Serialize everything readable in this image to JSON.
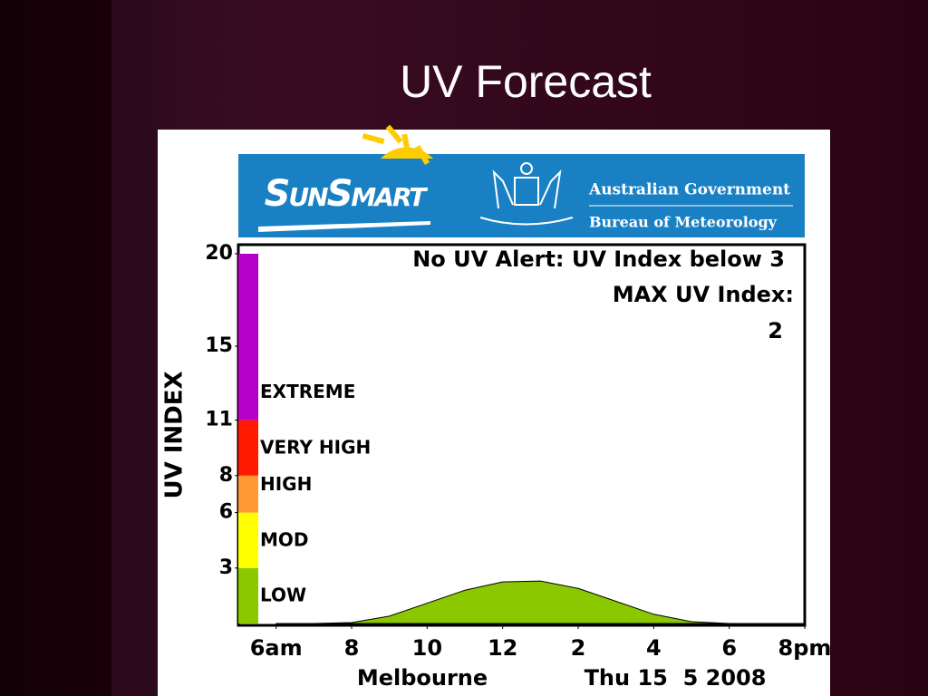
{
  "slide": {
    "title": "UV Forecast"
  },
  "header": {
    "brand": "SunSmart",
    "government": "Australian Government",
    "agency": "Bureau of Meteorology"
  },
  "chart_data": {
    "type": "area",
    "ylabel": "UV INDEX",
    "annotations": [
      "No UV Alert: UV Index below 3",
      "MAX UV Index:",
      "2"
    ],
    "location": "Melbourne",
    "date": "Thu 15  5 2008",
    "x": [
      6,
      7,
      8,
      9,
      10,
      11,
      12,
      13,
      14,
      15,
      16,
      17,
      18,
      19,
      20
    ],
    "values": [
      0,
      0,
      0.05,
      0.4,
      1.1,
      1.8,
      2.25,
      2.3,
      1.9,
      1.2,
      0.5,
      0.1,
      0,
      0,
      0
    ],
    "color": "#8cc800",
    "xlim": [
      5,
      20
    ],
    "xticks": [
      {
        "value": 6,
        "label": "6am"
      },
      8,
      10,
      12,
      {
        "value": 14,
        "label": "2"
      },
      {
        "value": 16,
        "label": "4"
      },
      {
        "value": 18,
        "label": "6"
      },
      {
        "value": 20,
        "label": "8pm"
      }
    ],
    "ylim": [
      0,
      20
    ],
    "yticks": [
      3,
      6,
      8,
      11,
      15,
      20
    ],
    "bands": [
      {
        "label": "LOW",
        "from": 0,
        "to": 3,
        "color": "#8cc800"
      },
      {
        "label": "MOD",
        "from": 3,
        "to": 6,
        "color": "#ffff00"
      },
      {
        "label": "HIGH",
        "from": 6,
        "to": 8,
        "color": "#ff9933"
      },
      {
        "label": "VERY HIGH",
        "from": 8,
        "to": 11,
        "color": "#ff1a00"
      },
      {
        "label": "EXTREME",
        "from": 11,
        "to": 20,
        "color": "#b400c8"
      }
    ]
  }
}
